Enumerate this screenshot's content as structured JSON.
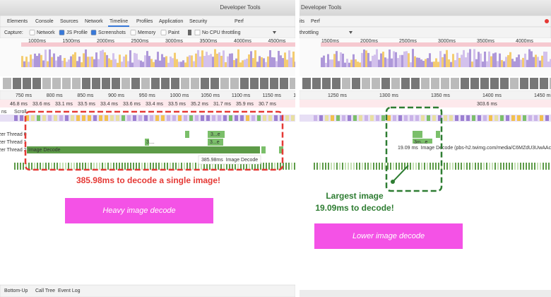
{
  "left": {
    "title": "Developer Tools",
    "tabs": [
      "Elements",
      "Console",
      "Sources",
      "Network",
      "Timeline",
      "Profiles",
      "Application",
      "Security",
      "Perf"
    ],
    "capture": "Capture:",
    "options": [
      "Network",
      "JS Profile",
      "Screenshots",
      "Memory",
      "Paint"
    ],
    "throttling": "No CPU throttling",
    "overview_ticks": [
      "1000ms",
      "1500ms",
      "2000ms",
      "2500ms",
      "3000ms",
      "3500ms",
      "4000ms",
      "4500ms"
    ],
    "ruler_ticks": [
      "750 ms",
      "800 ms",
      "850 ms",
      "900 ms",
      "950 ms",
      "1000 ms",
      "1050 ms",
      "1100 ms",
      "1150 ms",
      "120"
    ],
    "frames": [
      "46.8 ms",
      "33.6 ms",
      "33.1 ms",
      "33.5 ms",
      "33.4 ms",
      "33.6 ms",
      "33.4 ms",
      "33.5 ms",
      "35.2 ms",
      "31.7 ms",
      "35.9 ms",
      "30.7 ms"
    ],
    "track_labels": [
      "ns",
      "Scroll",
      "zer Thread 0",
      "zer Thread 1",
      "zer Thread 2"
    ],
    "bar_label": "Image Decode",
    "event_labels": [
      "3...e",
      "3...e",
      "3...."
    ],
    "tooltip": "385.98ms  Image Decode",
    "annotation": "385.98ms to decode a single image!",
    "callout": "Heavy image decode",
    "bottom_tabs": [
      "Bottom-Up",
      "Call Tree",
      "Event Log"
    ]
  },
  "right": {
    "title": "Developer Tools",
    "tabs": [
      "its",
      "Perf"
    ],
    "throttling": "throttling",
    "overview_ticks": [
      "1500ms",
      "2000ms",
      "2500ms",
      "3000ms",
      "3500ms",
      "4000ms",
      "4500ms"
    ],
    "ruler_ticks": [
      "1250 ms",
      "1300 ms",
      "1350 ms",
      "1400 ms",
      "1450 m"
    ],
    "frame": "303.6 ms",
    "event_label": "3m...e",
    "tooltip": "19.09 ms  Image Decode (pbs-h2.twimg.com/media/C6MZdU3UwAAcB",
    "annotation": [
      "Largest image",
      "19.09ms to decode!"
    ],
    "callout": "Lower image decode"
  }
}
